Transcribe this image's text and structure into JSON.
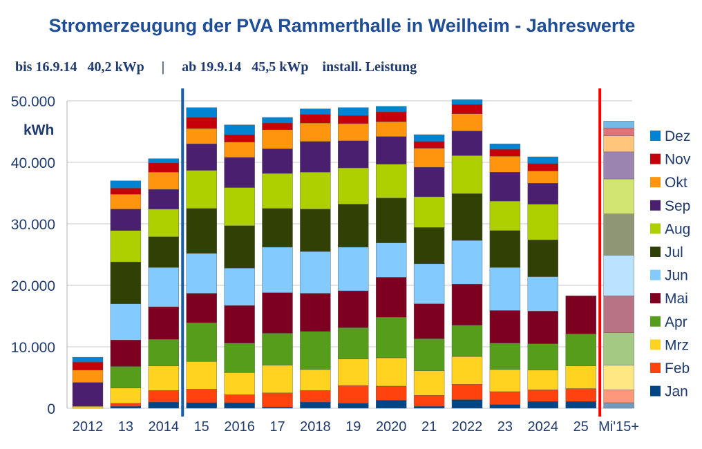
{
  "chart_data": {
    "type": "bar",
    "stacked": true,
    "title": "Stromerzeugung der PVA Rammerthalle in Weilheim - Jahreswerte",
    "subtitle": "bis 16.9.14   40,2 kWp     |     ab 19.9.14   45,5 kWp    install. Leistung",
    "ylabel": "kWh",
    "ylim": [
      0,
      50000
    ],
    "yticks": [
      "0",
      "10.000",
      "20.000",
      "30.000",
      "40.000",
      "50.000"
    ],
    "categories": [
      "2012",
      "13",
      "2014",
      "15",
      "2016",
      "17",
      "2018",
      "19",
      "2020",
      "21",
      "2022",
      "23",
      "2024",
      "25",
      "Mi'15+"
    ],
    "colors": {
      "Jan": "#004586",
      "Feb": "#ff420e",
      "Mrz": "#ffd320",
      "Apr": "#579d1c",
      "Mai": "#7e0021",
      "Jun": "#83caff",
      "Jul": "#314004",
      "Aug": "#aecf00",
      "Sep": "#4b1f6f",
      "Okt": "#ff950e",
      "Nov": "#c5000b",
      "Dez": "#0084d1"
    },
    "series": [
      {
        "name": "Jan",
        "values": [
          0,
          300,
          1000,
          900,
          900,
          200,
          1000,
          800,
          1300,
          300,
          1400,
          600,
          1100,
          1100,
          900
        ]
      },
      {
        "name": "Feb",
        "values": [
          0,
          500,
          1900,
          2200,
          1300,
          2300,
          1900,
          2900,
          2300,
          1800,
          2500,
          2100,
          1900,
          2100,
          2100
        ]
      },
      {
        "name": "Mrz",
        "values": [
          300,
          2500,
          4000,
          4500,
          3600,
          4500,
          3400,
          4300,
          4600,
          4000,
          4500,
          3600,
          3200,
          3700,
          4000
        ]
      },
      {
        "name": "Apr",
        "values": [
          0,
          3500,
          4300,
          6300,
          4800,
          5200,
          6200,
          5100,
          6600,
          5200,
          5100,
          4300,
          4300,
          5200,
          5300
        ]
      },
      {
        "name": "Mai",
        "values": [
          0,
          4300,
          5300,
          4800,
          6100,
          6600,
          6200,
          6000,
          6500,
          5700,
          6700,
          5300,
          5300,
          6200,
          6000
        ]
      },
      {
        "name": "Jun",
        "values": [
          0,
          5900,
          6400,
          6500,
          6100,
          7400,
          6800,
          7100,
          5600,
          6500,
          7100,
          7000,
          5600,
          0,
          6600
        ]
      },
      {
        "name": "Jul",
        "values": [
          0,
          6800,
          5000,
          7300,
          6900,
          6300,
          6900,
          7000,
          7300,
          5900,
          7600,
          6000,
          6000,
          0,
          6700
        ]
      },
      {
        "name": "Aug",
        "values": [
          0,
          5100,
          4500,
          6200,
          6200,
          5700,
          6000,
          5900,
          5500,
          5000,
          6200,
          4800,
          5800,
          0,
          5700
        ]
      },
      {
        "name": "Sep",
        "values": [
          3900,
          3500,
          3200,
          4300,
          4900,
          4000,
          5000,
          4400,
          4500,
          4800,
          4000,
          4700,
          3400,
          0,
          4400
        ]
      },
      {
        "name": "Okt",
        "values": [
          2000,
          2400,
          2800,
          2500,
          2500,
          3100,
          3000,
          2800,
          2400,
          3100,
          2800,
          2600,
          2000,
          0,
          2600
        ]
      },
      {
        "name": "Nov",
        "values": [
          1300,
          1000,
          1500,
          1800,
          1200,
          1100,
          1400,
          1300,
          1600,
          1100,
          1500,
          1100,
          1200,
          0,
          1300
        ]
      },
      {
        "name": "Dez",
        "values": [
          800,
          1200,
          700,
          1600,
          1600,
          900,
          900,
          1300,
          900,
          1100,
          800,
          900,
          1100,
          0,
          1100
        ]
      }
    ],
    "legend_order": [
      "Dez",
      "Nov",
      "Okt",
      "Sep",
      "Aug",
      "Jul",
      "Jun",
      "Mai",
      "Apr",
      "Mrz",
      "Feb",
      "Jan"
    ],
    "legend_position": "right",
    "annotations": [
      {
        "type": "vertical-line",
        "between": [
          "2014",
          "15"
        ],
        "color": "#1b5fa0"
      },
      {
        "type": "vertical-line",
        "between": [
          "25",
          "Mi'15+"
        ],
        "color": "#ff0000"
      }
    ],
    "grid": true
  }
}
